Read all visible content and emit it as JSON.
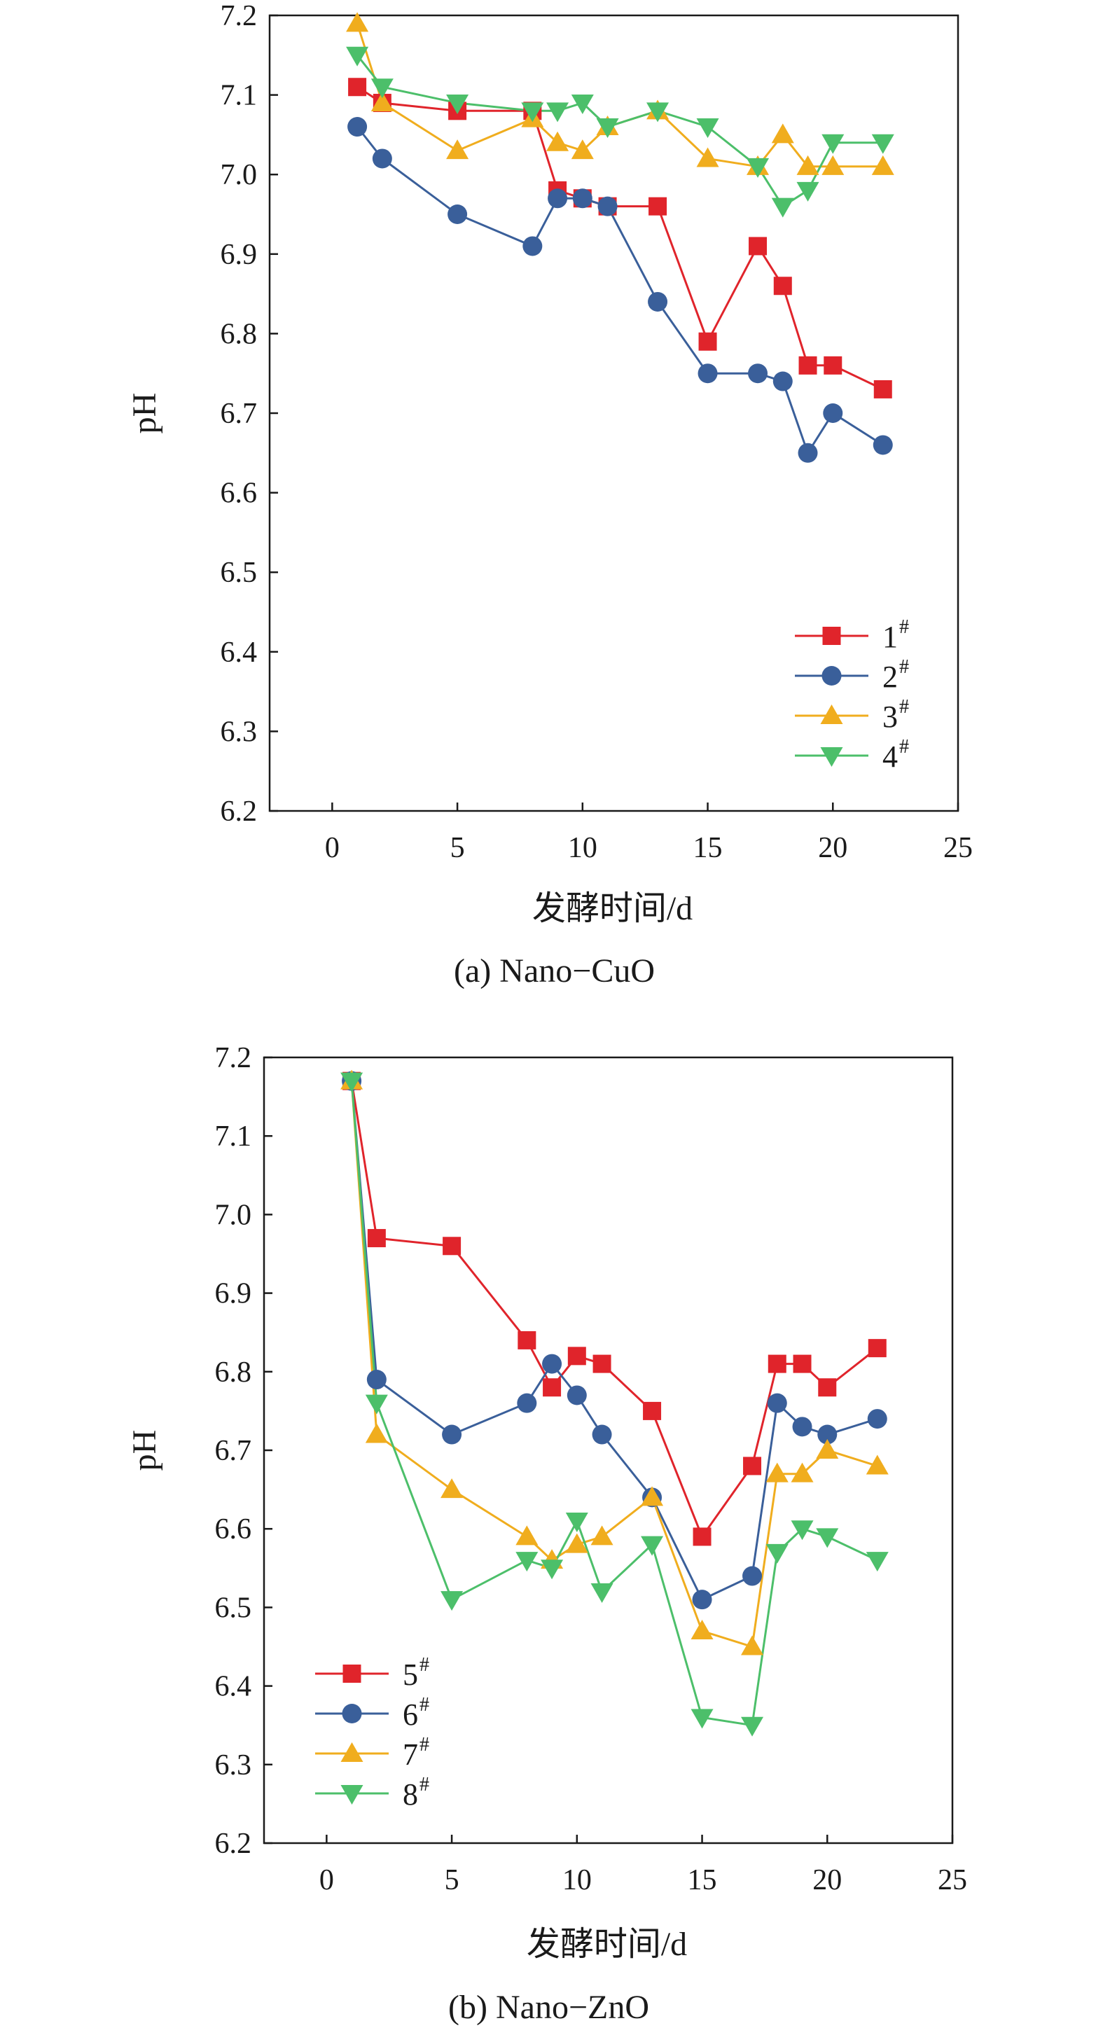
{
  "chart_data": [
    {
      "type": "line",
      "caption": "(a) Nano−CuO",
      "xlabel": "发酵时间/d",
      "ylabel": "pH",
      "xlim": [
        -2.5,
        25
      ],
      "ylim": [
        6.2,
        7.2
      ],
      "xticks": [
        0,
        5,
        10,
        15,
        20,
        25
      ],
      "yticks": [
        6.2,
        6.3,
        6.4,
        6.5,
        6.6,
        6.7,
        6.8,
        6.9,
        7.0,
        7.1,
        7.2
      ],
      "ytick_labels": [
        "6.2",
        "6.3",
        "6.4",
        "6.5",
        "6.6",
        "6.7",
        "6.8",
        "6.9",
        "7.0",
        "7.1",
        "7.2"
      ],
      "legend_position": "bottom-right",
      "series": [
        {
          "name": "1",
          "sup": "#",
          "color": "#e0242b",
          "marker": "square",
          "x": [
            1,
            2,
            5,
            8,
            9,
            10,
            11,
            13,
            15,
            17,
            18,
            19,
            20,
            22
          ],
          "y": [
            7.11,
            7.09,
            7.08,
            7.08,
            6.98,
            6.97,
            6.96,
            6.96,
            6.79,
            6.91,
            6.86,
            6.76,
            6.76,
            6.73
          ]
        },
        {
          "name": "2",
          "sup": "#",
          "color": "#3a5f9a",
          "marker": "circle",
          "x": [
            1,
            2,
            5,
            8,
            9,
            10,
            11,
            13,
            15,
            17,
            18,
            19,
            20,
            22
          ],
          "y": [
            7.06,
            7.02,
            6.95,
            6.91,
            6.97,
            6.97,
            6.96,
            6.84,
            6.75,
            6.75,
            6.74,
            6.65,
            6.7,
            6.66
          ]
        },
        {
          "name": "3",
          "sup": "#",
          "color": "#f0ad1e",
          "marker": "triangle-up",
          "x": [
            1,
            2,
            5,
            8,
            9,
            10,
            11,
            13,
            15,
            17,
            18,
            19,
            20,
            22
          ],
          "y": [
            7.19,
            7.09,
            7.03,
            7.07,
            7.04,
            7.03,
            7.06,
            7.08,
            7.02,
            7.01,
            7.05,
            7.01,
            7.01,
            7.01
          ]
        },
        {
          "name": "4",
          "sup": "#",
          "color": "#4cbf6a",
          "marker": "triangle-down",
          "x": [
            1,
            2,
            5,
            8,
            9,
            10,
            11,
            13,
            15,
            17,
            18,
            19,
            20,
            22
          ],
          "y": [
            7.15,
            7.11,
            7.09,
            7.08,
            7.08,
            7.09,
            7.06,
            7.08,
            7.06,
            7.01,
            6.96,
            6.98,
            7.04,
            7.04
          ]
        }
      ]
    },
    {
      "type": "line",
      "caption": "(b) Nano−ZnO",
      "xlabel": "发酵时间/d",
      "ylabel": "pH",
      "xlim": [
        -2.5,
        25
      ],
      "ylim": [
        6.2,
        7.2
      ],
      "xticks": [
        0,
        5,
        10,
        15,
        20,
        25
      ],
      "yticks": [
        6.2,
        6.3,
        6.4,
        6.5,
        6.6,
        6.7,
        6.8,
        6.9,
        7.0,
        7.1,
        7.2
      ],
      "ytick_labels": [
        "6.2",
        "6.3",
        "6.4",
        "6.5",
        "6.6",
        "6.7",
        "6.8",
        "6.9",
        "7.0",
        "7.1",
        "7.2"
      ],
      "legend_position": "bottom-left",
      "series": [
        {
          "name": "5",
          "sup": "#",
          "color": "#e0242b",
          "marker": "square",
          "x": [
            1,
            2,
            5,
            8,
            9,
            10,
            11,
            13,
            15,
            17,
            18,
            19,
            20,
            22
          ],
          "y": [
            7.17,
            6.97,
            6.96,
            6.84,
            6.78,
            6.82,
            6.81,
            6.75,
            6.59,
            6.68,
            6.81,
            6.81,
            6.78,
            6.83
          ]
        },
        {
          "name": "6",
          "sup": "#",
          "color": "#3a5f9a",
          "marker": "circle",
          "x": [
            1,
            2,
            5,
            8,
            9,
            10,
            11,
            13,
            15,
            17,
            18,
            19,
            20,
            22
          ],
          "y": [
            7.17,
            6.79,
            6.72,
            6.76,
            6.81,
            6.77,
            6.72,
            6.64,
            6.51,
            6.54,
            6.76,
            6.73,
            6.72,
            6.74
          ]
        },
        {
          "name": "7",
          "sup": "#",
          "color": "#f0ad1e",
          "marker": "triangle-up",
          "x": [
            1,
            2,
            5,
            8,
            9,
            10,
            11,
            13,
            15,
            17,
            18,
            19,
            20,
            22
          ],
          "y": [
            7.17,
            6.72,
            6.65,
            6.59,
            6.56,
            6.58,
            6.59,
            6.64,
            6.47,
            6.45,
            6.67,
            6.67,
            6.7,
            6.68
          ]
        },
        {
          "name": "8",
          "sup": "#",
          "color": "#4cbf6a",
          "marker": "triangle-down",
          "x": [
            1,
            2,
            5,
            8,
            9,
            10,
            11,
            13,
            15,
            17,
            18,
            19,
            20,
            22
          ],
          "y": [
            7.17,
            6.76,
            6.51,
            6.56,
            6.55,
            6.61,
            6.52,
            6.58,
            6.36,
            6.35,
            6.57,
            6.6,
            6.59,
            6.56
          ]
        }
      ]
    }
  ]
}
